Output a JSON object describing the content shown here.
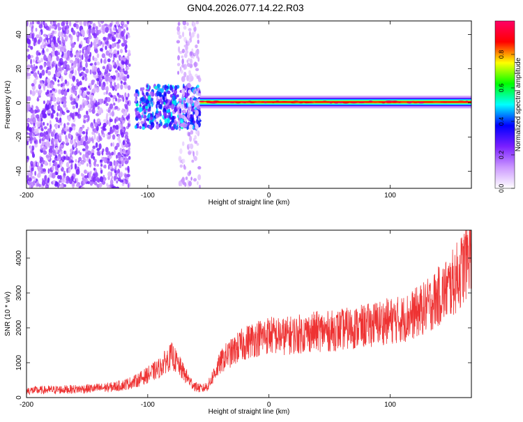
{
  "title": "GN04.2026.077.14.22.R03",
  "chart_data": [
    {
      "type": "heatmap",
      "title": "GN04.2026.077.14.22.R03",
      "xlabel": "Height of straight line (km)",
      "ylabel": "Frequency (Hz)",
      "xlim": [
        -200,
        167
      ],
      "ylim": [
        -50,
        48
      ],
      "xticks": [
        "-200",
        "-100",
        "0",
        "100"
      ],
      "xtick_values": [
        -200,
        -100,
        0,
        100
      ],
      "yticks": [
        "-40",
        "-20",
        "0",
        "20",
        "40"
      ],
      "ytick_values": [
        -40,
        -20,
        0,
        20,
        40
      ],
      "colorbar": {
        "label": "Normalized spectral amplitude",
        "range": [
          0,
          1
        ],
        "ticks": [
          "0.0",
          "0.2",
          "0.4",
          "0.6",
          "0.8"
        ],
        "tick_values": [
          0,
          0.2,
          0.4,
          0.6,
          0.8
        ],
        "colors": [
          "#ffffff",
          "#cc99ff",
          "#7a1fff",
          "#0000ff",
          "#00ffff",
          "#00ff00",
          "#ffff00",
          "#ff0000",
          "#ff0066"
        ]
      },
      "features": [
        {
          "x_range": [
            -200,
            -115
          ],
          "y_range": [
            -50,
            48
          ],
          "amplitude": 0.2
        },
        {
          "x_range": [
            -110,
            -57
          ],
          "y_range": [
            -15,
            10
          ],
          "amplitude": 0.4
        },
        {
          "x_range": [
            -75,
            -57
          ],
          "y_range": [
            -50,
            48
          ],
          "amplitude": 0.12
        },
        {
          "x_range": [
            -57,
            167
          ],
          "y_center": 0.5,
          "amplitude": 0.9
        }
      ]
    },
    {
      "type": "line",
      "xlabel": "Height of straight line (km)",
      "ylabel": "SNR (10 * v/v)",
      "xlim": [
        -200,
        167
      ],
      "ylim": [
        0,
        4800
      ],
      "xticks": [
        "-200",
        "-100",
        "0",
        "100"
      ],
      "xtick_values": [
        -200,
        -100,
        0,
        100
      ],
      "yticks": [
        "0",
        "1000",
        "2000",
        "3000",
        "4000"
      ],
      "ytick_values": [
        0,
        1000,
        2000,
        3000,
        4000
      ],
      "color": "#ee3333",
      "x": [
        -200,
        -180,
        -160,
        -140,
        -130,
        -120,
        -110,
        -100,
        -90,
        -85,
        -80,
        -75,
        -70,
        -65,
        -60,
        -55,
        -50,
        -45,
        -40,
        -35,
        -30,
        -25,
        -20,
        -15,
        -10,
        -5,
        0,
        10,
        20,
        30,
        40,
        50,
        60,
        70,
        80,
        90,
        100,
        110,
        120,
        130,
        140,
        150,
        160,
        167
      ],
      "y": [
        200,
        220,
        240,
        270,
        300,
        360,
        470,
        650,
        850,
        1050,
        1200,
        950,
        700,
        450,
        300,
        250,
        350,
        700,
        1000,
        1200,
        1300,
        1450,
        1550,
        1650,
        1700,
        1750,
        1800,
        1750,
        1800,
        1850,
        1900,
        1900,
        1950,
        2000,
        2050,
        2150,
        2200,
        2250,
        2400,
        2600,
        2900,
        3200,
        3700,
        4400
      ]
    }
  ]
}
